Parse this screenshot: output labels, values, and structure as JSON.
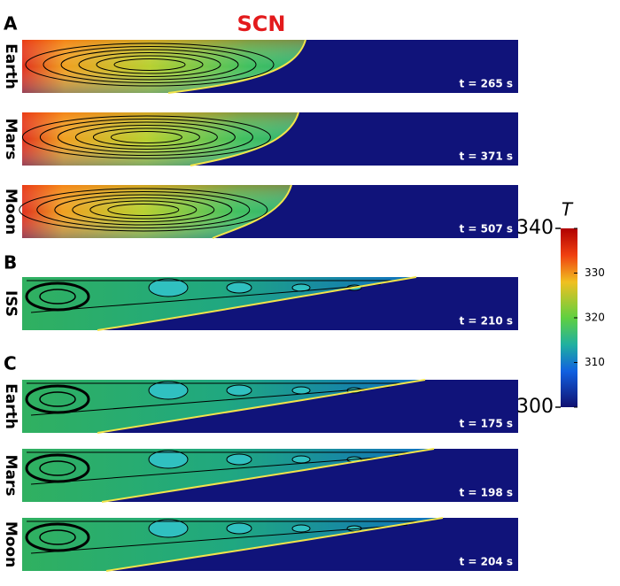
{
  "title": "SCN",
  "groups": [
    {
      "letter": "A",
      "panels": [
        {
          "label": "Earth",
          "time": "t = 265 s"
        },
        {
          "label": "Mars",
          "time": "t = 371 s"
        },
        {
          "label": "Moon",
          "time": "t = 507 s"
        }
      ]
    },
    {
      "letter": "B",
      "panels": [
        {
          "label": "ISS",
          "time": "t = 210 s"
        }
      ]
    },
    {
      "letter": "C",
      "panels": [
        {
          "label": "Earth",
          "time": "t = 175 s"
        },
        {
          "label": "Mars",
          "time": "t = 198 s"
        },
        {
          "label": "Moon",
          "time": "t = 204 s"
        }
      ]
    }
  ],
  "colorbar": {
    "label": "T",
    "lim": [
      300,
      340
    ],
    "ticks": [
      300,
      310,
      320,
      330,
      340
    ]
  }
}
